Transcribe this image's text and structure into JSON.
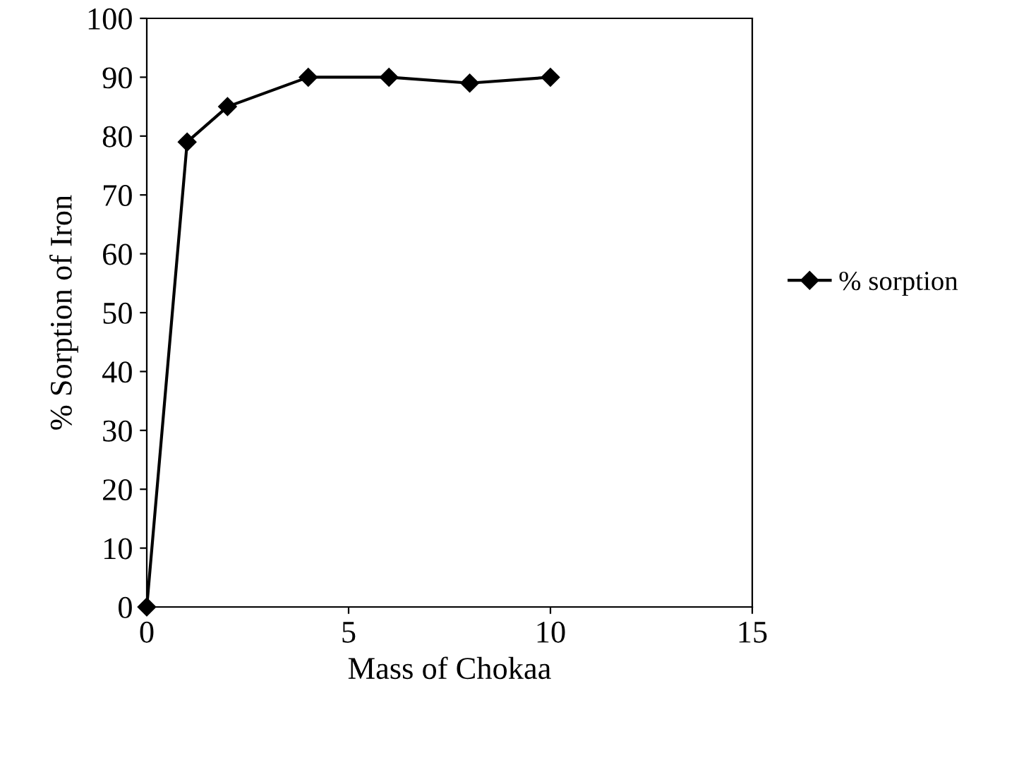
{
  "chart_data": {
    "type": "line",
    "xlabel": "Mass of Chokaa",
    "ylabel": "% Sorption of Iron",
    "x": [
      0,
      1,
      2,
      4,
      6,
      8,
      10
    ],
    "series": [
      {
        "name": "% sorption",
        "color": "#000000",
        "values": [
          0,
          79,
          85,
          90,
          90,
          89,
          90
        ]
      }
    ],
    "xlim": [
      0,
      15
    ],
    "xticks": [
      0,
      5,
      10,
      15
    ],
    "ylim": [
      0,
      100
    ],
    "yticks": [
      0,
      10,
      20,
      30,
      40,
      50,
      60,
      70,
      80,
      90,
      100
    ],
    "marker": "diamond",
    "line_style": "solid",
    "legend": "right",
    "grid": false
  }
}
